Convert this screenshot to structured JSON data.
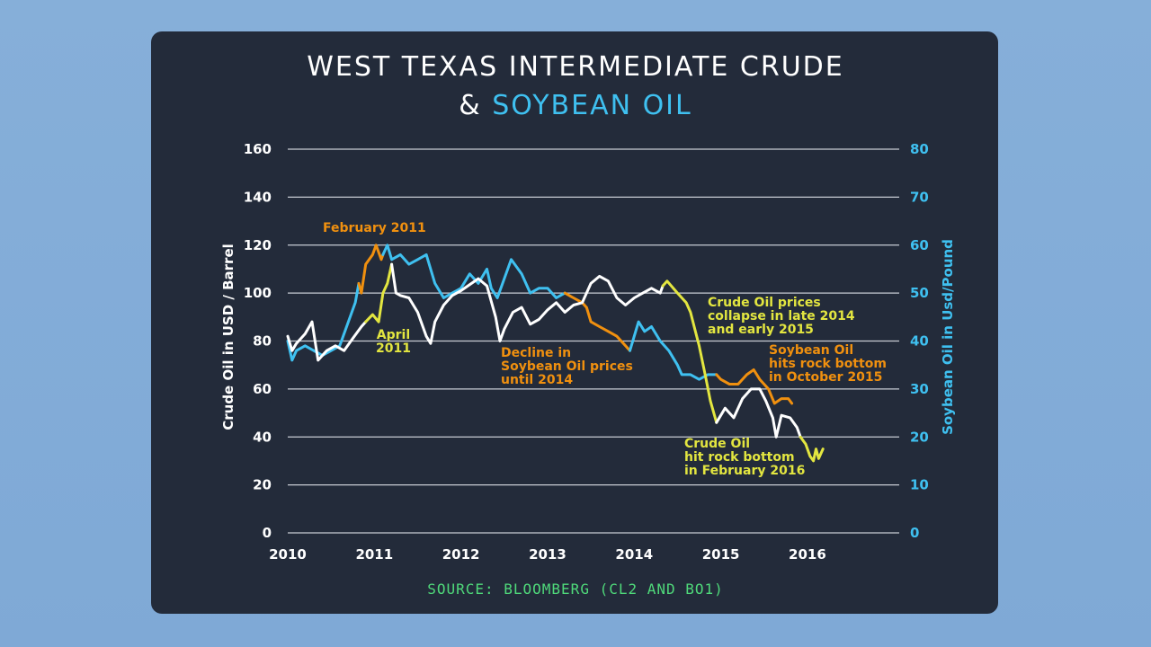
{
  "title": {
    "line1": "WEST TEXAS INTERMEDIATE CRUDE",
    "line2_prefix": "& ",
    "line2_highlight": "SOYBEAN OIL"
  },
  "source": "SOURCE: BLOOMBERG (CL2 AND BO1)",
  "colors": {
    "crude": "#ffffff",
    "soybean": "#3fc0f0",
    "highlight_orange": "#f0900f",
    "highlight_yellow": "#e3e640",
    "panel": "#232b3a",
    "grid": "#c8ccd4",
    "source": "#4fd97a"
  },
  "chart_data": {
    "type": "line",
    "ylabel_left": "Crude Oil in USD / Barrel",
    "ylabel_right": "Soybean Oil in Usd/Pound",
    "ylim_left": [
      0,
      160
    ],
    "ylim_right": [
      0,
      80
    ],
    "yticks_left": [
      "0",
      "20",
      "40",
      "60",
      "80",
      "100",
      "120",
      "140",
      "160"
    ],
    "yticks_right": [
      "0",
      "10",
      "20",
      "30",
      "40",
      "50",
      "60",
      "70",
      "80"
    ],
    "xticks": [
      "2010",
      "2011",
      "2012",
      "2013",
      "2014",
      "2015",
      "2016"
    ],
    "xlim": [
      2010,
      2017.06
    ],
    "grid": true,
    "series": [
      {
        "axis": "left",
        "segments": [
          {
            "color": "#ffffff",
            "points": [
              [
                2010.0,
                82
              ],
              [
                2010.05,
                76
              ],
              [
                2010.1,
                79
              ],
              [
                2010.2,
                83
              ],
              [
                2010.28,
                88
              ],
              [
                2010.35,
                72
              ],
              [
                2010.45,
                76
              ],
              [
                2010.55,
                78
              ],
              [
                2010.65,
                76
              ],
              [
                2010.75,
                81
              ],
              [
                2010.85,
                86
              ],
              [
                2010.9,
                88
              ]
            ]
          },
          {
            "color": "#e3e640",
            "points": [
              [
                2010.9,
                88
              ],
              [
                2010.98,
                91
              ],
              [
                2011.05,
                88
              ],
              [
                2011.1,
                100
              ],
              [
                2011.15,
                104
              ],
              [
                2011.2,
                112
              ]
            ]
          },
          {
            "color": "#ffffff",
            "points": [
              [
                2011.2,
                112
              ],
              [
                2011.25,
                100
              ],
              [
                2011.3,
                99
              ],
              [
                2011.4,
                98
              ],
              [
                2011.5,
                92
              ],
              [
                2011.6,
                82
              ],
              [
                2011.65,
                79
              ],
              [
                2011.7,
                88
              ],
              [
                2011.8,
                95
              ],
              [
                2011.9,
                99
              ],
              [
                2012.0,
                101
              ],
              [
                2012.2,
                106
              ],
              [
                2012.3,
                103
              ],
              [
                2012.4,
                90
              ],
              [
                2012.45,
                80
              ],
              [
                2012.5,
                85
              ],
              [
                2012.6,
                92
              ],
              [
                2012.7,
                94
              ],
              [
                2012.8,
                87
              ],
              [
                2012.9,
                89
              ],
              [
                2013.0,
                93
              ],
              [
                2013.1,
                96
              ],
              [
                2013.2,
                92
              ],
              [
                2013.3,
                95
              ],
              [
                2013.4,
                96
              ],
              [
                2013.5,
                104
              ],
              [
                2013.6,
                107
              ],
              [
                2013.7,
                105
              ],
              [
                2013.8,
                98
              ],
              [
                2013.9,
                95
              ],
              [
                2014.0,
                98
              ],
              [
                2014.1,
                100
              ],
              [
                2014.2,
                102
              ],
              [
                2014.3,
                100
              ],
              [
                2014.33,
                103
              ]
            ]
          },
          {
            "color": "#e3e640",
            "points": [
              [
                2014.33,
                103
              ],
              [
                2014.38,
                105
              ],
              [
                2014.5,
                100
              ],
              [
                2014.6,
                96
              ],
              [
                2014.65,
                92
              ],
              [
                2014.7,
                85
              ],
              [
                2014.75,
                78
              ],
              [
                2014.82,
                66
              ],
              [
                2014.88,
                55
              ],
              [
                2014.95,
                46
              ]
            ]
          },
          {
            "color": "#ffffff",
            "points": [
              [
                2014.95,
                46
              ],
              [
                2015.05,
                52
              ],
              [
                2015.15,
                48
              ],
              [
                2015.25,
                56
              ],
              [
                2015.35,
                60
              ],
              [
                2015.45,
                60
              ],
              [
                2015.52,
                55
              ],
              [
                2015.6,
                48
              ],
              [
                2015.64,
                40
              ],
              [
                2015.7,
                49
              ],
              [
                2015.8,
                48
              ],
              [
                2015.88,
                44
              ],
              [
                2015.92,
                40
              ]
            ]
          },
          {
            "color": "#e3e640",
            "points": [
              [
                2015.92,
                40
              ],
              [
                2015.98,
                37
              ],
              [
                2016.03,
                32
              ],
              [
                2016.07,
                30
              ],
              [
                2016.1,
                35
              ],
              [
                2016.13,
                31
              ],
              [
                2016.18,
                35
              ]
            ]
          }
        ]
      },
      {
        "axis": "right",
        "segments": [
          {
            "color": "#3fc0f0",
            "points": [
              [
                2010.0,
                40
              ],
              [
                2010.05,
                36
              ],
              [
                2010.1,
                38
              ],
              [
                2010.2,
                39
              ],
              [
                2010.3,
                38
              ],
              [
                2010.4,
                37
              ],
              [
                2010.5,
                38
              ],
              [
                2010.6,
                39
              ],
              [
                2010.7,
                44
              ],
              [
                2010.78,
                48
              ],
              [
                2010.82,
                52
              ]
            ]
          },
          {
            "color": "#f0900f",
            "points": [
              [
                2010.82,
                52
              ],
              [
                2010.85,
                50
              ],
              [
                2010.9,
                56
              ],
              [
                2010.98,
                58
              ],
              [
                2011.02,
                60
              ],
              [
                2011.08,
                57
              ],
              [
                2011.1,
                58
              ]
            ]
          },
          {
            "color": "#3fc0f0",
            "points": [
              [
                2011.1,
                58
              ],
              [
                2011.15,
                60
              ],
              [
                2011.2,
                57
              ],
              [
                2011.3,
                58
              ],
              [
                2011.4,
                56
              ],
              [
                2011.5,
                57
              ],
              [
                2011.6,
                58
              ],
              [
                2011.7,
                52
              ],
              [
                2011.8,
                49
              ],
              [
                2011.9,
                50
              ],
              [
                2012.0,
                51
              ],
              [
                2012.1,
                54
              ],
              [
                2012.2,
                52
              ],
              [
                2012.3,
                55
              ],
              [
                2012.35,
                51
              ],
              [
                2012.42,
                49
              ],
              [
                2012.5,
                53
              ],
              [
                2012.58,
                57
              ],
              [
                2012.7,
                54
              ],
              [
                2012.8,
                50
              ],
              [
                2012.9,
                51
              ],
              [
                2013.0,
                51
              ],
              [
                2013.1,
                49
              ],
              [
                2013.2,
                50
              ]
            ]
          },
          {
            "color": "#f0900f",
            "points": [
              [
                2013.2,
                50
              ],
              [
                2013.3,
                49
              ],
              [
                2013.4,
                48
              ],
              [
                2013.45,
                47
              ],
              [
                2013.5,
                44
              ],
              [
                2013.6,
                43
              ],
              [
                2013.7,
                42
              ],
              [
                2013.8,
                41
              ],
              [
                2013.9,
                39
              ],
              [
                2013.95,
                38
              ]
            ]
          },
          {
            "color": "#3fc0f0",
            "points": [
              [
                2013.95,
                38
              ],
              [
                2014.0,
                41
              ],
              [
                2014.05,
                44
              ],
              [
                2014.12,
                42
              ],
              [
                2014.2,
                43
              ],
              [
                2014.3,
                40
              ],
              [
                2014.4,
                38
              ],
              [
                2014.5,
                35
              ],
              [
                2014.55,
                33
              ],
              [
                2014.65,
                33
              ],
              [
                2014.75,
                32
              ],
              [
                2014.85,
                33
              ],
              [
                2014.95,
                33
              ]
            ]
          },
          {
            "color": "#f0900f",
            "points": [
              [
                2014.95,
                33
              ],
              [
                2015.0,
                32
              ],
              [
                2015.1,
                31
              ],
              [
                2015.2,
                31
              ],
              [
                2015.3,
                33
              ],
              [
                2015.38,
                34
              ],
              [
                2015.45,
                32
              ],
              [
                2015.55,
                30
              ],
              [
                2015.62,
                27
              ],
              [
                2015.7,
                28
              ],
              [
                2015.78,
                28
              ],
              [
                2015.82,
                27
              ]
            ]
          }
        ]
      }
    ],
    "annotations": [
      {
        "id": "feb2011",
        "text": [
          "February 2011"
        ],
        "color": "#f0900f"
      },
      {
        "id": "apr2011",
        "text": [
          "April",
          "2011"
        ],
        "color": "#e3e640"
      },
      {
        "id": "decline",
        "text": [
          "Decline in",
          "Soybean Oil prices",
          "until 2014"
        ],
        "color": "#f0900f"
      },
      {
        "id": "collapse",
        "text": [
          "Crude Oil prices",
          "collapse in late 2014",
          "and early 2015"
        ],
        "color": "#e3e640"
      },
      {
        "id": "soybottom",
        "text": [
          "Soybean Oil",
          "hits rock bottom",
          "in October 2015"
        ],
        "color": "#f0900f"
      },
      {
        "id": "crudebottom",
        "text": [
          "Crude Oil",
          "hit rock bottom",
          "in February 2016"
        ],
        "color": "#e3e640"
      }
    ]
  }
}
